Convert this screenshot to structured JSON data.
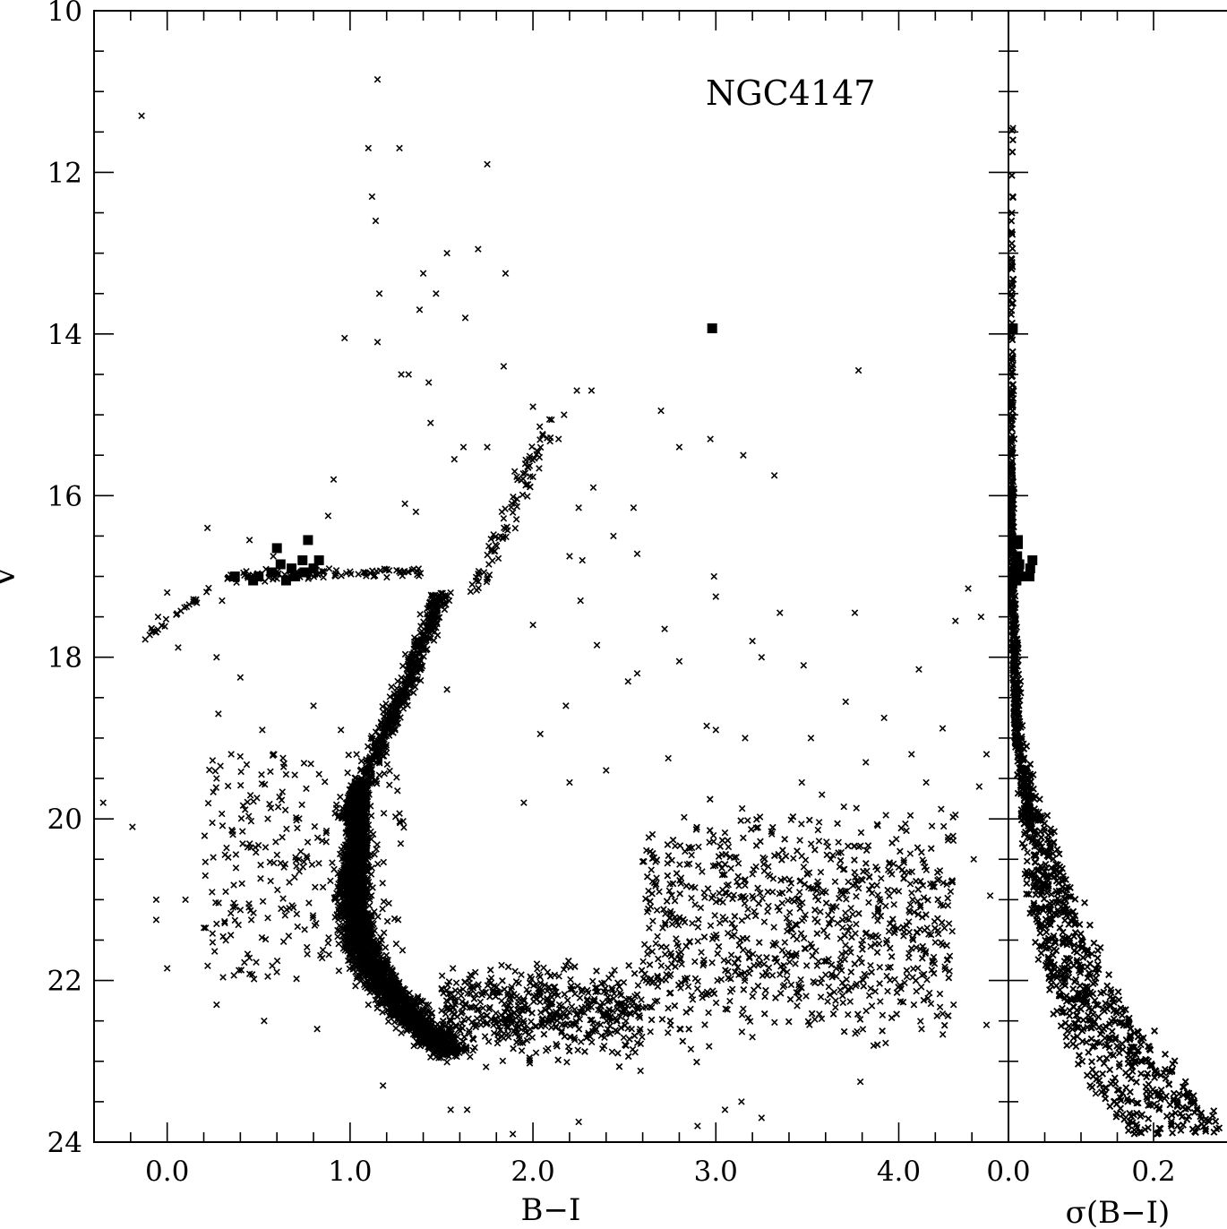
{
  "chart_data": [
    {
      "type": "scatter",
      "annotation": "NGC4147",
      "xlabel": "B−I",
      "ylabel": "V",
      "xlim": [
        -0.4,
        4.6
      ],
      "ylim": [
        24,
        10
      ],
      "y_inverted": true,
      "x_ticks": [
        "0.0",
        "1.0",
        "2.0",
        "3.0",
        "4.0"
      ],
      "y_ticks": [
        "10",
        "12",
        "14",
        "16",
        "18",
        "20",
        "22",
        "24"
      ],
      "series": [
        {
          "marker": "cross",
          "description_points": [
            [
              -0.14,
              11.3
            ],
            [
              1.15,
              10.85
            ],
            [
              1.1,
              11.7
            ],
            [
              1.27,
              11.7
            ],
            [
              1.75,
              11.9
            ],
            [
              1.12,
              12.3
            ],
            [
              1.14,
              12.6
            ],
            [
              1.7,
              12.95
            ],
            [
              1.53,
              13.0
            ],
            [
              1.85,
              13.25
            ],
            [
              1.4,
              13.25
            ],
            [
              1.16,
              13.5
            ],
            [
              1.47,
              13.5
            ],
            [
              1.63,
              13.8
            ],
            [
              1.38,
              13.7
            ],
            [
              0.97,
              14.05
            ],
            [
              1.15,
              14.1
            ],
            [
              1.84,
              14.4
            ],
            [
              1.28,
              14.5
            ],
            [
              1.32,
              14.5
            ],
            [
              1.43,
              14.6
            ],
            [
              3.78,
              14.45
            ],
            [
              2.24,
              14.7
            ],
            [
              2.32,
              14.7
            ],
            [
              2.0,
              14.9
            ],
            [
              2.7,
              14.95
            ],
            [
              2.17,
              15.0
            ],
            [
              1.44,
              15.1
            ],
            [
              2.14,
              15.3
            ],
            [
              2.97,
              15.3
            ],
            [
              1.62,
              15.4
            ],
            [
              2.8,
              15.4
            ],
            [
              3.15,
              15.5
            ],
            [
              3.32,
              15.75
            ],
            [
              1.57,
              15.55
            ],
            [
              1.75,
              15.4
            ],
            [
              1.9,
              15.7
            ],
            [
              2.33,
              15.9
            ],
            [
              2.55,
              16.15
            ],
            [
              2.25,
              16.15
            ],
            [
              0.91,
              15.8
            ],
            [
              1.3,
              16.1
            ],
            [
              1.36,
              16.2
            ],
            [
              1.83,
              16.2
            ],
            [
              2.2,
              16.75
            ],
            [
              2.27,
              16.8
            ],
            [
              2.44,
              16.5
            ],
            [
              2.57,
              16.72
            ],
            [
              2.99,
              17.0
            ],
            [
              3.0,
              17.25
            ],
            [
              2.26,
              17.3
            ],
            [
              2.0,
              17.6
            ],
            [
              2.72,
              17.65
            ],
            [
              3.35,
              17.45
            ],
            [
              3.76,
              17.45
            ],
            [
              2.35,
              17.85
            ],
            [
              2.57,
              18.2
            ],
            [
              2.8,
              18.05
            ],
            [
              3.2,
              17.8
            ],
            [
              3.25,
              18.0
            ],
            [
              3.48,
              18.1
            ],
            [
              4.11,
              18.15
            ],
            [
              4.38,
              17.15
            ],
            [
              4.31,
              17.55
            ],
            [
              4.45,
              17.5
            ],
            [
              0.88,
              16.25
            ],
            [
              0.58,
              16.75
            ],
            [
              0.45,
              16.55
            ],
            [
              0.22,
              16.4
            ],
            [
              0.3,
              17.3
            ],
            [
              0.0,
              17.2
            ],
            [
              -0.05,
              17.5
            ],
            [
              -0.12,
              17.78
            ],
            [
              0.06,
              17.88
            ],
            [
              0.27,
              18.0
            ],
            [
              0.4,
              18.25
            ],
            [
              0.28,
              18.7
            ],
            [
              0.52,
              18.9
            ],
            [
              0.35,
              19.2
            ],
            [
              0.58,
              19.2
            ],
            [
              0.8,
              18.6
            ],
            [
              0.95,
              18.9
            ],
            [
              0.65,
              19.45
            ],
            [
              -0.35,
              19.8
            ],
            [
              -0.19,
              20.1
            ],
            [
              0.27,
              19.5
            ],
            [
              0.55,
              20.0
            ],
            [
              0.44,
              20.35
            ],
            [
              0.32,
              20.9
            ],
            [
              -0.06,
              21.0
            ],
            [
              0.1,
              21.0
            ],
            [
              -0.06,
              21.25
            ],
            [
              0.27,
              21.3
            ],
            [
              0.46,
              21.25
            ],
            [
              0.0,
              21.85
            ],
            [
              0.55,
              21.95
            ],
            [
              0.27,
              22.3
            ],
            [
              0.53,
              22.5
            ],
            [
              0.98,
              21.5
            ],
            [
              1.1,
              22.3
            ],
            [
              0.82,
              22.6
            ],
            [
              1.18,
              23.3
            ],
            [
              1.55,
              23.6
            ],
            [
              1.64,
              23.6
            ],
            [
              2.25,
              23.75
            ],
            [
              1.89,
              23.9
            ],
            [
              2.9,
              23.8
            ],
            [
              3.05,
              23.6
            ],
            [
              3.14,
              23.5
            ],
            [
              3.25,
              23.7
            ],
            [
              2.18,
              18.6
            ],
            [
              2.04,
              18.95
            ],
            [
              1.53,
              18.4
            ],
            [
              2.52,
              18.3
            ],
            [
              2.95,
              18.85
            ],
            [
              3.0,
              18.9
            ],
            [
              3.16,
              19.0
            ],
            [
              3.52,
              19.0
            ],
            [
              3.71,
              18.55
            ],
            [
              3.92,
              18.75
            ],
            [
              4.07,
              19.2
            ],
            [
              4.24,
              18.88
            ],
            [
              4.48,
              19.2
            ],
            [
              4.44,
              19.6
            ],
            [
              4.41,
              20.5
            ],
            [
              4.5,
              20.95
            ],
            [
              4.48,
              22.55
            ],
            [
              4.3,
              22.3
            ],
            [
              4.25,
              21.35
            ],
            [
              4.0,
              20.6
            ],
            [
              2.74,
              19.25
            ],
            [
              2.4,
              19.4
            ],
            [
              2.2,
              19.55
            ],
            [
              1.95,
              19.8
            ],
            [
              3.58,
              19.7
            ],
            [
              3.82,
              19.3
            ],
            [
              3.47,
              19.55
            ],
            [
              3.7,
              19.85
            ],
            [
              4.15,
              19.55
            ],
            [
              4.31,
              19.95
            ]
          ],
          "dense_distribution": {
            "main_sequence": "dense band from (1.0, 20.5) curving to (1.6, 22.7), then a wide horizontal band of field stars B−I 1.5–4.3, V 20.0–23.5",
            "red_giant_branch": "narrow branch from (1.0, 20.3) rising to (1.55, 17.5) and (1.75, 16.5), continuing to (2.1, 15.0)",
            "horizontal_branch": "sequence from (-0.1, 17.6) rising to (0.3, 17.0) extending to (1.4, 16.9)"
          }
        },
        {
          "marker": "filled-square",
          "points": [
            [
              0.37,
              17.0
            ],
            [
              0.47,
              17.05
            ],
            [
              0.5,
              17.0
            ],
            [
              0.57,
              16.95
            ],
            [
              0.6,
              16.65
            ],
            [
              0.62,
              16.85
            ],
            [
              0.65,
              17.05
            ],
            [
              0.68,
              16.9
            ],
            [
              0.7,
              17.0
            ],
            [
              0.74,
              16.8
            ],
            [
              0.75,
              16.95
            ],
            [
              0.77,
              16.55
            ],
            [
              0.8,
              16.9
            ],
            [
              0.83,
              16.8
            ],
            [
              2.98,
              13.93
            ]
          ]
        }
      ]
    },
    {
      "type": "scatter",
      "xlabel": "σ(B−I)",
      "ylabel": "",
      "xlim": [
        0.0,
        0.24
      ],
      "ylim": [
        24,
        10
      ],
      "y_inverted": true,
      "x_ticks": [
        "0.0",
        "0.2"
      ],
      "series": [
        {
          "marker": "cross",
          "description": "photometric error envelope: near 0.00–0.02 for V<17, broadening to 0.01–0.24 for V 19–24"
        },
        {
          "marker": "filled-square",
          "points": [
            [
              0.006,
              13.93
            ],
            [
              0.013,
              16.6
            ],
            [
              0.012,
              16.75
            ],
            [
              0.015,
              16.85
            ],
            [
              0.014,
              16.95
            ],
            [
              0.017,
              17.0
            ],
            [
              0.011,
              17.05
            ],
            [
              0.03,
              16.9
            ],
            [
              0.033,
              16.8
            ],
            [
              0.029,
              17.0
            ],
            [
              0.013,
              16.55
            ]
          ]
        }
      ]
    }
  ]
}
